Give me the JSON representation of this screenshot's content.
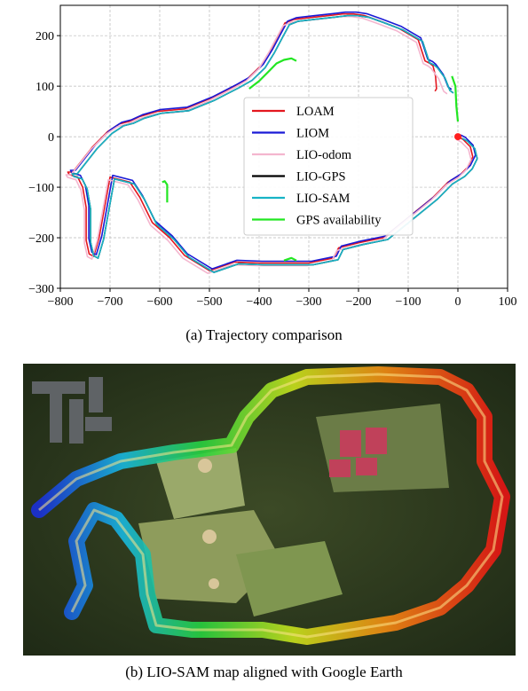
{
  "figure_a": {
    "caption": "(a) Trajectory comparison",
    "chart_data": {
      "type": "line",
      "title": "",
      "xlabel": "",
      "ylabel": "",
      "xlim": [
        -800,
        100
      ],
      "ylim": [
        -300,
        260
      ],
      "x_ticks": [
        -800,
        -700,
        -600,
        -500,
        -400,
        -300,
        -200,
        -100,
        0,
        100
      ],
      "x_tick_labels": [
        "−800",
        "−700",
        "−600",
        "−500",
        "−400",
        "−300",
        "−200",
        "−100",
        "0",
        "100"
      ],
      "y_ticks": [
        -300,
        -200,
        -100,
        0,
        100,
        200
      ],
      "y_tick_labels": [
        "−300",
        "−200",
        "−100",
        "0",
        "100",
        "200"
      ],
      "grid": true,
      "legend_position": "center",
      "start_point": {
        "x": 0,
        "y": 0,
        "color": "#ff1f1f"
      },
      "series": [
        {
          "name": "LOAM",
          "color": "#e3171f",
          "x": [
            0,
            10,
            25,
            30,
            20,
            5,
            -20,
            -50,
            -100,
            -150,
            -200,
            -240,
            -250,
            -300,
            -350,
            -400,
            -450,
            -500,
            -550,
            -580,
            -615,
            -640,
            -660,
            -700,
            -722,
            -733,
            -742,
            -748,
            -748,
            -755,
            -765,
            -782,
            -785,
            -775,
            -735,
            -705,
            -682,
            -662,
            -640,
            -605,
            -550,
            -500,
            -450,
            -423,
            -397,
            -378,
            -362,
            -348,
            -330,
            -295,
            -258,
            -232,
            -210,
            -189,
            -160,
            -120,
            -80,
            -66,
            -56,
            -50,
            -45,
            -43,
            -46
          ],
          "y": [
            0,
            -5,
            -20,
            -40,
            -60,
            -75,
            -90,
            -120,
            -160,
            -200,
            -210,
            -220,
            -240,
            -250,
            -250,
            -250,
            -248,
            -265,
            -235,
            -200,
            -170,
            -120,
            -90,
            -80,
            -200,
            -237,
            -232,
            -205,
            -140,
            -100,
            -80,
            -75,
            -70,
            -70,
            -20,
            10,
            25,
            30,
            40,
            50,
            55,
            75,
            100,
            115,
            140,
            170,
            200,
            225,
            232,
            236,
            240,
            243,
            243,
            240,
            230,
            215,
            192,
            150,
            145,
            140,
            120,
            95,
            90
          ]
        },
        {
          "name": "LIOM",
          "color": "#1a1ad6",
          "x": [
            0,
            10,
            25,
            30,
            20,
            5,
            -20,
            -50,
            -100,
            -150,
            -200,
            -240,
            -250,
            -300,
            -350,
            -400,
            -450,
            -500,
            -550,
            -580,
            -615,
            -640,
            -660,
            -700,
            -722,
            -733,
            -742,
            -748,
            -748,
            -755,
            -765,
            -782,
            -785,
            -775,
            -735,
            -705,
            -682,
            -662,
            -640,
            -605,
            -550,
            -500,
            -450,
            -423,
            -397,
            -378,
            -362,
            -348,
            -330,
            -295,
            -258,
            -232,
            -210,
            -189,
            -160,
            -120,
            -80,
            -66,
            -56,
            -50,
            -35,
            -25,
            -18
          ],
          "y": [
            0,
            -5,
            -20,
            -40,
            -60,
            -75,
            -90,
            -120,
            -160,
            -200,
            -210,
            -220,
            -240,
            -250,
            -250,
            -250,
            -248,
            -265,
            -235,
            -200,
            -170,
            -120,
            -90,
            -80,
            -200,
            -237,
            -232,
            -205,
            -140,
            -100,
            -80,
            -75,
            -70,
            -70,
            -20,
            10,
            25,
            30,
            40,
            50,
            55,
            75,
            100,
            115,
            140,
            170,
            200,
            225,
            232,
            236,
            240,
            243,
            243,
            240,
            230,
            215,
            192,
            150,
            145,
            140,
            120,
            95,
            90
          ]
        },
        {
          "name": "LIO-odom",
          "color": "#f4b6cf",
          "x": [
            0,
            10,
            25,
            30,
            20,
            5,
            -20,
            -50,
            -100,
            -150,
            -200,
            -240,
            -250,
            -300,
            -350,
            -400,
            -450,
            -500,
            -550,
            -580,
            -615,
            -640,
            -660,
            -700,
            -722,
            -733,
            -742,
            -748,
            -748,
            -755,
            -765,
            -782,
            -785,
            -775,
            -735,
            -705,
            -682,
            -662,
            -640,
            -605,
            -550,
            -500,
            -450,
            -423,
            -397,
            -378,
            -362,
            -348,
            -330,
            -295,
            -258,
            -232,
            -210,
            -189,
            -160,
            -120,
            -80,
            -66,
            -56,
            -50,
            -35,
            -25,
            -18
          ],
          "y": [
            0,
            -5,
            -20,
            -40,
            -60,
            -75,
            -90,
            -120,
            -160,
            -200,
            -210,
            -220,
            -240,
            -250,
            -250,
            -250,
            -248,
            -265,
            -235,
            -200,
            -170,
            -120,
            -90,
            -80,
            -200,
            -237,
            -232,
            -205,
            -140,
            -100,
            -80,
            -75,
            -70,
            -70,
            -20,
            10,
            25,
            30,
            40,
            50,
            55,
            75,
            100,
            115,
            140,
            170,
            200,
            225,
            232,
            236,
            240,
            243,
            243,
            240,
            230,
            215,
            192,
            150,
            145,
            140,
            120,
            95,
            90
          ]
        },
        {
          "name": "LIO-GPS",
          "color": "#000000",
          "x": [
            0,
            10,
            25,
            30,
            20,
            5,
            -20,
            -50,
            -100,
            -150,
            -200,
            -240,
            -250,
            -300,
            -350,
            -400,
            -450,
            -500,
            -550,
            -580,
            -615,
            -640,
            -660,
            -700,
            -722,
            -733,
            -742,
            -748,
            -748,
            -755,
            -765,
            -782,
            -785,
            -775,
            -735,
            -705,
            -682,
            -662,
            -640,
            -605,
            -550,
            -500,
            -450,
            -423,
            -397,
            -378,
            -362,
            -348,
            -330,
            -295,
            -258,
            -232,
            -210,
            -189,
            -160,
            -120,
            -80,
            -66,
            -56,
            -50,
            -35,
            -25,
            -18
          ],
          "y": [
            0,
            -5,
            -20,
            -40,
            -60,
            -75,
            -90,
            -120,
            -160,
            -200,
            -210,
            -220,
            -240,
            -250,
            -250,
            -250,
            -248,
            -265,
            -235,
            -200,
            -170,
            -120,
            -90,
            -80,
            -200,
            -237,
            -232,
            -205,
            -140,
            -100,
            -80,
            -75,
            -70,
            -70,
            -20,
            10,
            25,
            30,
            40,
            50,
            55,
            75,
            100,
            115,
            140,
            170,
            200,
            225,
            232,
            236,
            240,
            243,
            243,
            240,
            230,
            215,
            192,
            150,
            145,
            140,
            120,
            95,
            90
          ]
        },
        {
          "name": "LIO-SAM",
          "color": "#17b3c6",
          "x": [
            0,
            10,
            25,
            30,
            20,
            5,
            -20,
            -50,
            -100,
            -150,
            -200,
            -240,
            -250,
            -300,
            -350,
            -400,
            -450,
            -500,
            -550,
            -580,
            -615,
            -640,
            -660,
            -700,
            -722,
            -733,
            -742,
            -748,
            -748,
            -755,
            -765,
            -782,
            -785,
            -775,
            -735,
            -705,
            -682,
            -662,
            -640,
            -605,
            -550,
            -500,
            -450,
            -423,
            -397,
            -378,
            -362,
            -348,
            -330,
            -295,
            -258,
            -232,
            -210,
            -189,
            -160,
            -120,
            -80,
            -66,
            -56,
            -50,
            -35,
            -25,
            -18
          ],
          "y": [
            0,
            -5,
            -20,
            -40,
            -60,
            -75,
            -90,
            -120,
            -160,
            -200,
            -210,
            -220,
            -240,
            -250,
            -250,
            -250,
            -248,
            -265,
            -235,
            -200,
            -170,
            -120,
            -90,
            -80,
            -200,
            -237,
            -232,
            -205,
            -140,
            -100,
            -80,
            -75,
            -70,
            -70,
            -20,
            10,
            25,
            30,
            40,
            50,
            55,
            75,
            100,
            115,
            140,
            170,
            200,
            225,
            232,
            236,
            240,
            243,
            243,
            240,
            230,
            215,
            192,
            150,
            145,
            140,
            120,
            95,
            90
          ]
        },
        {
          "name": "GPS availability",
          "color": "#22e622",
          "segments": [
            {
              "x": [
                -420,
                -400,
                -380,
                -365,
                -350,
                -335,
                -325
              ],
              "y": [
                95,
                110,
                130,
                145,
                152,
                155,
                150
              ]
            },
            {
              "x": [
                -12,
                -5,
                -3,
                0
              ],
              "y": [
                120,
                100,
                60,
                30
              ]
            },
            {
              "x": [
                -595,
                -590,
                -585,
                -585
              ],
              "y": [
                -90,
                -88,
                -95,
                -130
              ]
            },
            {
              "x": [
                -350,
                -335,
                -325
              ],
              "y": [
                -245,
                -240,
                -245
              ]
            }
          ]
        }
      ]
    }
  },
  "figure_b": {
    "caption": "(b) LIO-SAM map aligned with Google Earth"
  }
}
